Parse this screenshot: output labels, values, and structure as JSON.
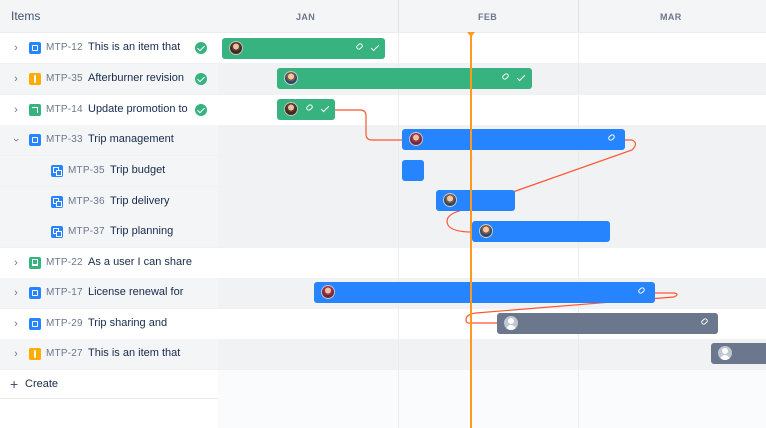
{
  "left_panel": {
    "header_label": "Items",
    "rows": [
      {
        "key": "MTP-12",
        "summary": "This is an item that",
        "type": "task-icon",
        "expand": "chevron-right",
        "done": true
      },
      {
        "key": "MTP-35",
        "summary": "Afterburner revision",
        "type": "idea-icon",
        "expand": "chevron-right",
        "done": true
      },
      {
        "key": "MTP-14",
        "summary": "Update promotion to",
        "type": "change-icon",
        "expand": "chevron-right",
        "done": true
      },
      {
        "key": "MTP-33",
        "summary": "Trip management",
        "type": "task-icon",
        "expand": "chevron-down",
        "done": false
      },
      {
        "key": "MTP-35",
        "summary": "Trip budget",
        "type": "subtask-icon",
        "expand": "",
        "done": false
      },
      {
        "key": "MTP-36",
        "summary": "Trip delivery",
        "type": "subtask-icon",
        "expand": "",
        "done": false
      },
      {
        "key": "MTP-37",
        "summary": "Trip planning",
        "type": "subtask-icon",
        "expand": "",
        "done": false
      },
      {
        "key": "MTP-22",
        "summary": "As a user I can share",
        "type": "story-icon",
        "expand": "chevron-right",
        "done": false
      },
      {
        "key": "MTP-17",
        "summary": "License renewal for",
        "type": "task-icon",
        "expand": "chevron-right",
        "done": false
      },
      {
        "key": "MTP-29",
        "summary": "Trip sharing and",
        "type": "task-icon",
        "expand": "chevron-right",
        "done": false
      },
      {
        "key": "MTP-27",
        "summary": "This is an item that",
        "type": "idea-icon",
        "expand": "chevron-right",
        "done": false
      }
    ],
    "create_label": "Create"
  },
  "timeline": {
    "months": [
      "JAN",
      "FEB",
      "MAR"
    ],
    "colors": {
      "green": "#36b37e",
      "blue": "#2684ff",
      "gray": "#6b778c",
      "today": "#ff991f",
      "dependency": "#ff5630"
    }
  }
}
